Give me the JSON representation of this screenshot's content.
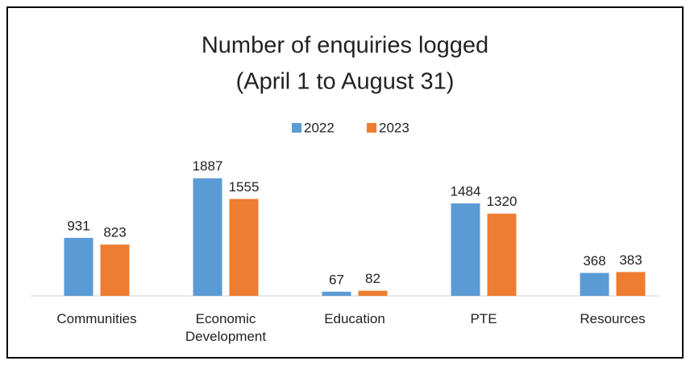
{
  "chart_data": {
    "type": "bar",
    "title": "Number of enquiries logged",
    "subtitle": "(April 1 to August 31)",
    "categories": [
      "Communities",
      "Economic Development",
      "Education",
      "PTE",
      "Resources"
    ],
    "series": [
      {
        "name": "2022",
        "color": "#5b9bd5",
        "values": [
          931,
          1887,
          67,
          1484,
          368
        ]
      },
      {
        "name": "2023",
        "color": "#ed7d31",
        "values": [
          823,
          1555,
          82,
          1320,
          383
        ]
      }
    ],
    "ylim": [
      0,
      2000
    ],
    "legend": "top"
  }
}
